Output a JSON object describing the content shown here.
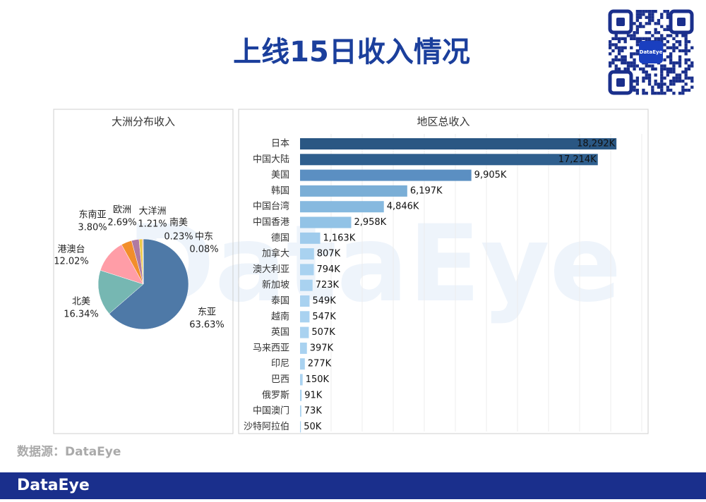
{
  "title": "上线15日收入情况",
  "watermark": "DataEye",
  "qr_label": "DataEye",
  "source": "数据源：DataEye",
  "footer_logo": "DataEye",
  "chart_data": [
    {
      "type": "pie",
      "title": "大洲分布收入",
      "categories": [
        "东亚",
        "北美",
        "港澳台",
        "东南亚",
        "欧洲",
        "大洋洲",
        "南美",
        "中东"
      ],
      "values": [
        63.63,
        16.34,
        12.02,
        3.8,
        2.69,
        1.21,
        0.23,
        0.08
      ],
      "value_labels": [
        "63.63%",
        "16.34%",
        "12.02%",
        "3.80%",
        "2.69%",
        "1.21%",
        "0.23%",
        "0.08%"
      ],
      "colors": [
        "#4e79a7",
        "#76b7b2",
        "#ff9da7",
        "#f28e2b",
        "#b07aa1",
        "#edc948",
        "#e15759",
        "#59a14f"
      ]
    },
    {
      "type": "hbar",
      "title": "地区总收入",
      "categories": [
        "日本",
        "中国大陆",
        "美国",
        "韩国",
        "中国台湾",
        "中国香港",
        "德国",
        "加拿大",
        "澳大利亚",
        "新加坡",
        "泰国",
        "越南",
        "英国",
        "马来西亚",
        "印尼",
        "巴西",
        "俄罗斯",
        "中国澳门",
        "沙特阿拉伯"
      ],
      "values": [
        18292,
        17214,
        9905,
        6197,
        4846,
        2958,
        1163,
        807,
        794,
        723,
        549,
        547,
        507,
        397,
        277,
        150,
        91,
        73,
        50
      ],
      "value_labels": [
        "18,292K",
        "17,214K",
        "9,905K",
        "6,197K",
        "4,846K",
        "2,958K",
        "1,163K",
        "807K",
        "794K",
        "723K",
        "549K",
        "547K",
        "507K",
        "397K",
        "277K",
        "150K",
        "91K",
        "73K",
        "50K"
      ],
      "colors": [
        "#2a5783",
        "#2f5f8e",
        "#5b8fc2",
        "#7aaed6",
        "#86b9df",
        "#92c3e6",
        "#9fcbec",
        "#a9d2f0",
        "#a9d2f0",
        "#a9d2f0",
        "#a9d2f0",
        "#a9d2f0",
        "#a9d2f0",
        "#a9d2f0",
        "#a9d2f0",
        "#a9d2f0",
        "#a9d2f0",
        "#a9d2f0",
        "#a9d2f0"
      ],
      "xlim": [
        0,
        20000
      ]
    }
  ]
}
